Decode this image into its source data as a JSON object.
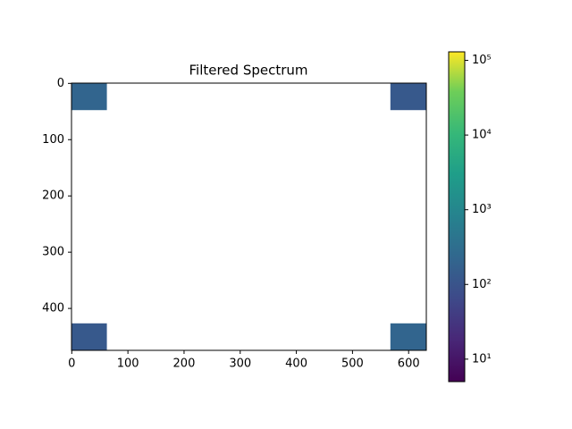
{
  "chart_data": {
    "type": "image",
    "title": "Filtered Spectrum",
    "xlim": [
      -0.5,
      631.5
    ],
    "ylim": [
      474.5,
      -0.5
    ],
    "xticks": [
      0,
      100,
      200,
      300,
      400,
      500,
      600
    ],
    "yticks": [
      0,
      100,
      200,
      300,
      400
    ],
    "colormap": "viridis",
    "colorbar_scale": "log",
    "clim": [
      5,
      130000
    ],
    "colorbar_ticks": [
      {
        "value": 10,
        "label": "10¹"
      },
      {
        "value": 100,
        "label": "10²"
      },
      {
        "value": 1000,
        "label": "10³"
      },
      {
        "value": 10000,
        "label": "10⁴"
      },
      {
        "value": 100000,
        "label": "10⁵"
      }
    ],
    "regions": [
      {
        "x": [
          0,
          62
        ],
        "y": [
          0,
          47
        ],
        "value": 200
      },
      {
        "x": [
          568,
          631
        ],
        "y": [
          0,
          47
        ],
        "value": 120
      },
      {
        "x": [
          0,
          62
        ],
        "y": [
          427,
          474
        ],
        "value": 120
      },
      {
        "x": [
          568,
          631
        ],
        "y": [
          427,
          474
        ],
        "value": 200
      }
    ]
  }
}
